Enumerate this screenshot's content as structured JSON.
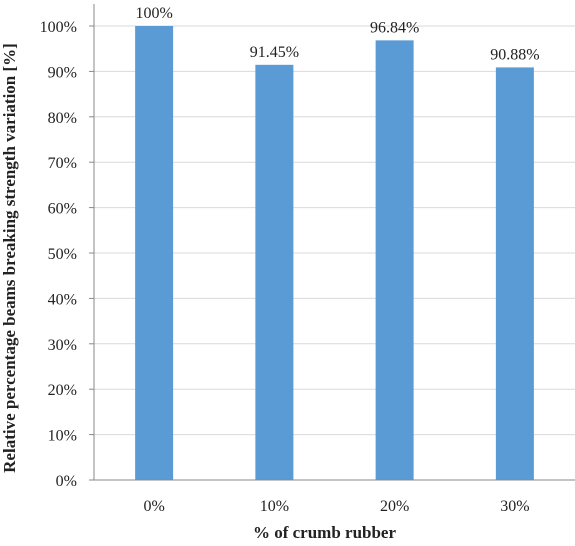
{
  "chart_data": {
    "type": "bar",
    "title": "",
    "xlabel": "% of crumb rubber",
    "ylabel": "Relative percentage beams breaking strength variation [%]",
    "categories": [
      "0%",
      "10%",
      "20%",
      "30%"
    ],
    "values": [
      100,
      91.45,
      96.84,
      90.88
    ],
    "data_labels": [
      "100%",
      "91.45%",
      "96.84%",
      "90.88%"
    ],
    "ylim": [
      0,
      100
    ],
    "yticks": [
      0,
      10,
      20,
      30,
      40,
      50,
      60,
      70,
      80,
      90,
      100
    ],
    "ytick_labels": [
      "0%",
      "10%",
      "20%",
      "30%",
      "40%",
      "50%",
      "60%",
      "70%",
      "80%",
      "90%",
      "100%"
    ],
    "grid": true,
    "legend": "none",
    "bar_color": "#5b9bd5",
    "grid_color": "#d9d9d9",
    "axis_color": "#888888"
  }
}
